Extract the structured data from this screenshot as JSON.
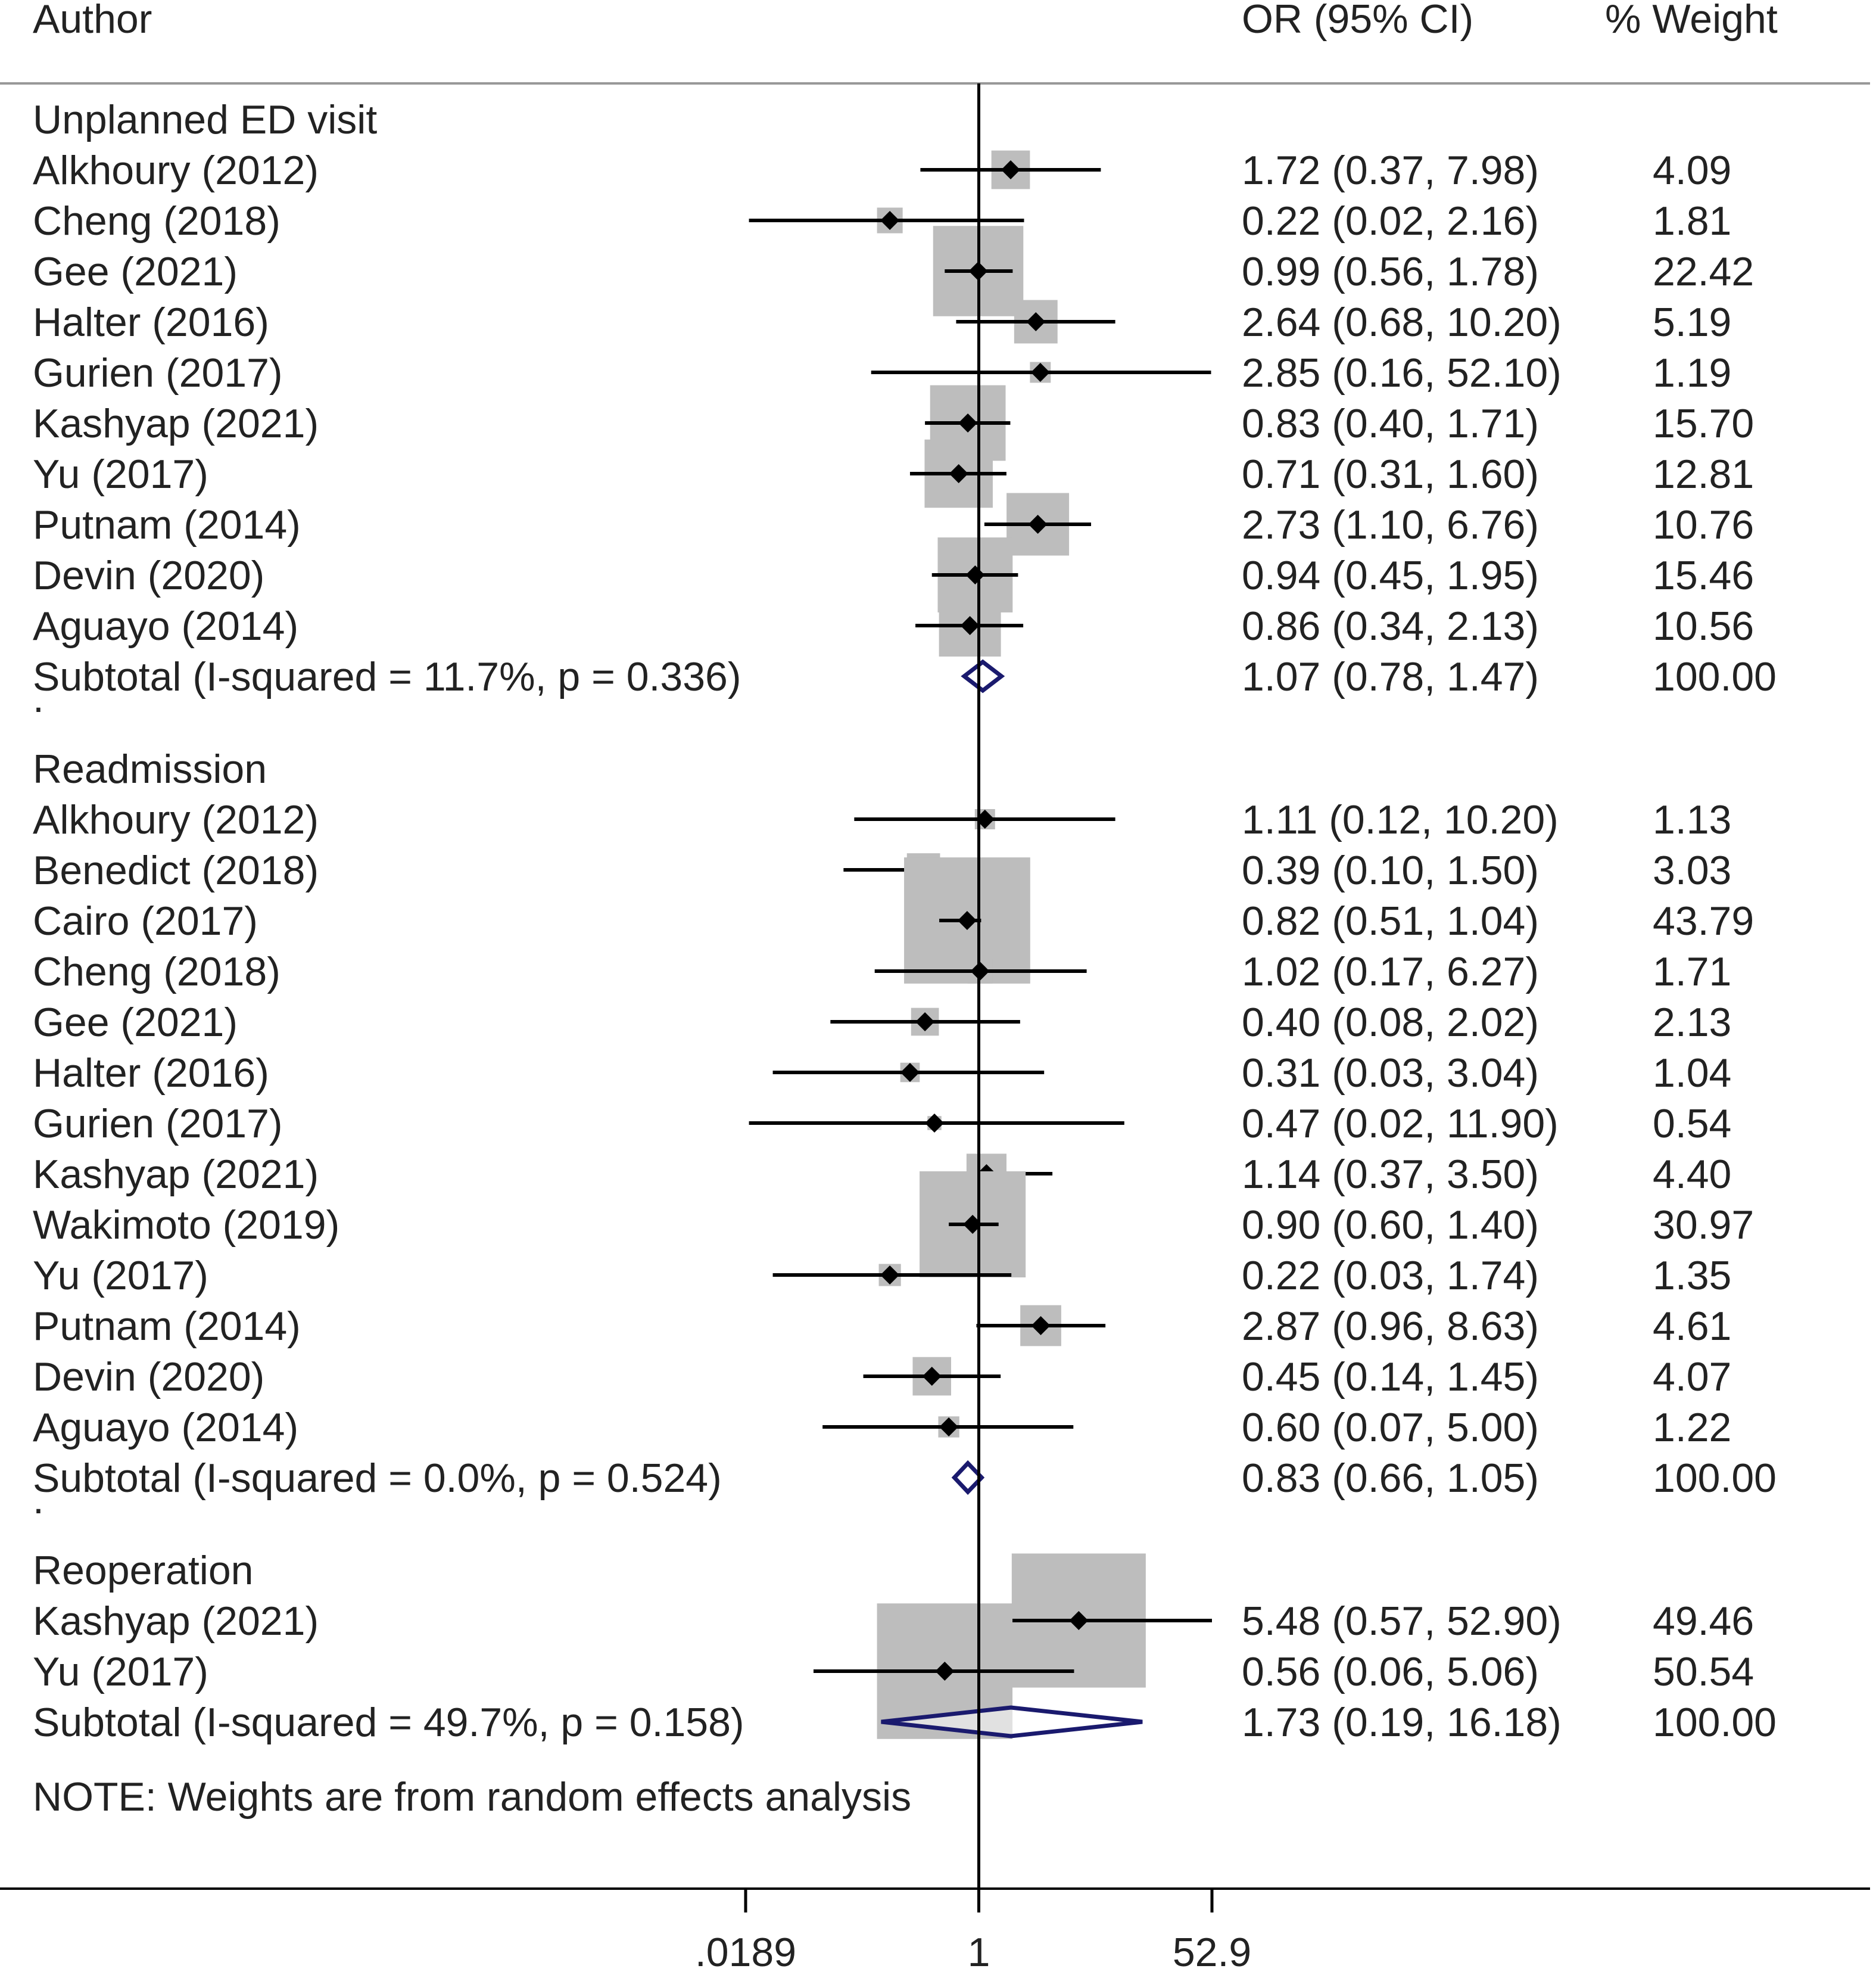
{
  "chart_data": {
    "type": "forest",
    "scale": "log",
    "headers": {
      "author": "Author",
      "estimate": "OR (95% CI)",
      "weight": "% Weight"
    },
    "xaxis": {
      "ticks": [
        0.0189,
        1,
        52.9
      ],
      "tick_labels": [
        ".0189",
        "1",
        "52.9"
      ],
      "range": [
        0.0189,
        52.9
      ]
    },
    "groups": [
      {
        "name": "Unplanned ED visit",
        "studies": [
          {
            "author": "Alkhoury (2012)",
            "or": 1.72,
            "lo": 0.37,
            "hi": 7.98,
            "ci_text": "1.72 (0.37, 7.98)",
            "weight": "4.09"
          },
          {
            "author": "Cheng (2018)",
            "or": 0.22,
            "lo": 0.02,
            "hi": 2.16,
            "ci_text": "0.22 (0.02, 2.16)",
            "weight": "1.81"
          },
          {
            "author": "Gee (2021)",
            "or": 0.99,
            "lo": 0.56,
            "hi": 1.78,
            "ci_text": "0.99 (0.56, 1.78)",
            "weight": "22.42"
          },
          {
            "author": "Halter (2016)",
            "or": 2.64,
            "lo": 0.68,
            "hi": 10.2,
            "ci_text": "2.64 (0.68, 10.20)",
            "weight": "5.19"
          },
          {
            "author": "Gurien (2017)",
            "or": 2.85,
            "lo": 0.16,
            "hi": 52.1,
            "ci_text": "2.85 (0.16, 52.10)",
            "weight": "1.19"
          },
          {
            "author": "Kashyap (2021)",
            "or": 0.83,
            "lo": 0.4,
            "hi": 1.71,
            "ci_text": "0.83 (0.40, 1.71)",
            "weight": "15.70"
          },
          {
            "author": "Yu (2017)",
            "or": 0.71,
            "lo": 0.31,
            "hi": 1.6,
            "ci_text": "0.71 (0.31, 1.60)",
            "weight": "12.81"
          },
          {
            "author": "Putnam (2014)",
            "or": 2.73,
            "lo": 1.1,
            "hi": 6.76,
            "ci_text": "2.73 (1.10, 6.76)",
            "weight": "10.76"
          },
          {
            "author": "Devin (2020)",
            "or": 0.94,
            "lo": 0.45,
            "hi": 1.95,
            "ci_text": "0.94 (0.45, 1.95)",
            "weight": "15.46"
          },
          {
            "author": "Aguayo (2014)",
            "or": 0.86,
            "lo": 0.34,
            "hi": 2.13,
            "ci_text": "0.86 (0.34, 2.13)",
            "weight": "10.56"
          }
        ],
        "subtotal": {
          "label": "Subtotal  (I-squared = 11.7%, p = 0.336)",
          "or": 1.07,
          "lo": 0.78,
          "hi": 1.47,
          "ci_text": "1.07 (0.78, 1.47)",
          "weight": "100.00"
        }
      },
      {
        "name": "Readmission",
        "studies": [
          {
            "author": "Alkhoury (2012)",
            "or": 1.11,
            "lo": 0.12,
            "hi": 10.2,
            "ci_text": "1.11 (0.12, 10.20)",
            "weight": "1.13"
          },
          {
            "author": "Benedict (2018)",
            "or": 0.39,
            "lo": 0.1,
            "hi": 1.5,
            "ci_text": "0.39 (0.10, 1.50)",
            "weight": "3.03"
          },
          {
            "author": "Cairo (2017)",
            "or": 0.82,
            "lo": 0.51,
            "hi": 1.04,
            "ci_text": "0.82 (0.51, 1.04)",
            "weight": "43.79"
          },
          {
            "author": "Cheng (2018)",
            "or": 1.02,
            "lo": 0.17,
            "hi": 6.27,
            "ci_text": "1.02 (0.17, 6.27)",
            "weight": "1.71"
          },
          {
            "author": "Gee (2021)",
            "or": 0.4,
            "lo": 0.08,
            "hi": 2.02,
            "ci_text": "0.40 (0.08, 2.02)",
            "weight": "2.13"
          },
          {
            "author": "Halter (2016)",
            "or": 0.31,
            "lo": 0.03,
            "hi": 3.04,
            "ci_text": "0.31 (0.03, 3.04)",
            "weight": "1.04"
          },
          {
            "author": "Gurien (2017)",
            "or": 0.47,
            "lo": 0.02,
            "hi": 11.9,
            "ci_text": "0.47 (0.02, 11.90)",
            "weight": "0.54"
          },
          {
            "author": "Kashyap (2021)",
            "or": 1.14,
            "lo": 0.37,
            "hi": 3.5,
            "ci_text": "1.14 (0.37, 3.50)",
            "weight": "4.40"
          },
          {
            "author": "Wakimoto (2019)",
            "or": 0.9,
            "lo": 0.6,
            "hi": 1.4,
            "ci_text": "0.90 (0.60, 1.40)",
            "weight": "30.97"
          },
          {
            "author": "Yu (2017)",
            "or": 0.22,
            "lo": 0.03,
            "hi": 1.74,
            "ci_text": "0.22 (0.03, 1.74)",
            "weight": "1.35"
          },
          {
            "author": "Putnam (2014)",
            "or": 2.87,
            "lo": 0.96,
            "hi": 8.63,
            "ci_text": "2.87 (0.96, 8.63)",
            "weight": "4.61"
          },
          {
            "author": "Devin (2020)",
            "or": 0.45,
            "lo": 0.14,
            "hi": 1.45,
            "ci_text": "0.45 (0.14, 1.45)",
            "weight": "4.07"
          },
          {
            "author": "Aguayo (2014)",
            "or": 0.6,
            "lo": 0.07,
            "hi": 5.0,
            "ci_text": "0.60 (0.07, 5.00)",
            "weight": "1.22"
          }
        ],
        "subtotal": {
          "label": "Subtotal  (I-squared = 0.0%, p = 0.524)",
          "or": 0.83,
          "lo": 0.66,
          "hi": 1.05,
          "ci_text": "0.83 (0.66, 1.05)",
          "weight": "100.00"
        }
      },
      {
        "name": "Reoperation",
        "studies": [
          {
            "author": "Kashyap (2021)",
            "or": 5.48,
            "lo": 0.57,
            "hi": 52.9,
            "ci_text": "5.48 (0.57, 52.90)",
            "weight": "49.46"
          },
          {
            "author": "Yu (2017)",
            "or": 0.56,
            "lo": 0.06,
            "hi": 5.06,
            "ci_text": "0.56 (0.06, 5.06)",
            "weight": "50.54"
          }
        ],
        "subtotal": {
          "label": "Subtotal  (I-squared = 49.7%, p = 0.158)",
          "or": 1.73,
          "lo": 0.19,
          "hi": 16.18,
          "ci_text": "1.73 (0.19, 16.18)",
          "weight": "100.00"
        }
      }
    ],
    "separator_text": ".",
    "note": "NOTE: Weights are from random effects analysis",
    "colors": {
      "text": "#222222",
      "line": "#000000",
      "box": "#bdbdbd",
      "diamond": "#1a1a6e",
      "rule": "#999999"
    }
  }
}
